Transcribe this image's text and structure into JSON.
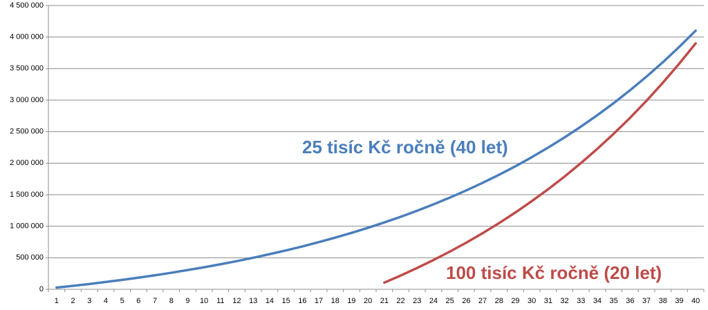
{
  "chart_data": {
    "type": "line",
    "categories": [
      1,
      2,
      3,
      4,
      5,
      6,
      7,
      8,
      9,
      10,
      11,
      12,
      13,
      14,
      15,
      16,
      17,
      18,
      19,
      20,
      21,
      22,
      23,
      24,
      25,
      26,
      27,
      28,
      29,
      30,
      31,
      32,
      33,
      34,
      35,
      36,
      37,
      38,
      39,
      40
    ],
    "series": [
      {
        "name": "25 tisíc Kč ročně (40 let)",
        "color": "#4a7ebb",
        "values": [
          27000,
          55000,
          84000,
          116000,
          149000,
          185000,
          222000,
          262000,
          305000,
          349000,
          397000,
          447000,
          500000,
          557000,
          617000,
          680000,
          748000,
          819000,
          895000,
          975000,
          1060000,
          1150000,
          1245000,
          1347000,
          1454000,
          1568000,
          1688000,
          1816000,
          1951000,
          2095000,
          2247000,
          2409000,
          2580000,
          2761000,
          2953000,
          3157000,
          3373000,
          3601000,
          3844000,
          4101000
        ]
      },
      {
        "name": "100 tisíc Kč ročně (20 let)",
        "color": "#be4b48",
        "values": [
          null,
          null,
          null,
          null,
          null,
          null,
          null,
          null,
          null,
          null,
          null,
          null,
          null,
          null,
          null,
          null,
          null,
          null,
          null,
          null,
          106000,
          218000,
          338000,
          464000,
          598000,
          739000,
          890000,
          1049000,
          1218000,
          1398000,
          1587000,
          1788000,
          2002000,
          2228000,
          2467000,
          2720000,
          2990000,
          3276000,
          3579000,
          3900000
        ]
      }
    ],
    "ylim": [
      0,
      4500000
    ],
    "yticks": [
      0,
      {
        "value": 500000,
        "label": "500 000"
      },
      {
        "value": 1000000,
        "label": "1 000 000"
      },
      {
        "value": 1500000,
        "label": "1 500 000"
      },
      {
        "value": 2000000,
        "label": "2 000 000"
      },
      {
        "value": 2500000,
        "label": "2 500 000"
      },
      {
        "value": 3000000,
        "label": "3 000 000"
      },
      {
        "value": 3500000,
        "label": "3 500 000"
      },
      {
        "value": 4000000,
        "label": "4 000 000"
      },
      {
        "value": 4500000,
        "label": "4 500 000"
      }
    ],
    "grid": true
  }
}
